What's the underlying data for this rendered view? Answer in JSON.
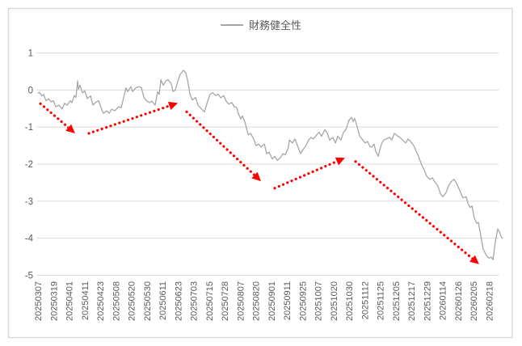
{
  "chart_data": {
    "type": "line",
    "title": "",
    "legend_position": "top",
    "grid": true,
    "frame": true,
    "x_axis": {
      "tick_labels": [
        "20250307",
        "20250319",
        "20250401",
        "20250411",
        "20250423",
        "20250508",
        "20250520",
        "20250530",
        "20250611",
        "20250623",
        "20250703",
        "20250715",
        "20250728",
        "20250807",
        "20250820",
        "20250901",
        "20250911",
        "20250925",
        "20251007",
        "20251020",
        "20251030",
        "20251112",
        "20251125",
        "20251205",
        "20251217",
        "20251229",
        "20260114",
        "20260126",
        "20260205",
        "20260218"
      ],
      "label_rotation_deg": 90,
      "x_scale_note": "series x values are in tick-label index units: 0 = 20250307, 29 = 20260218"
    },
    "y_axis": {
      "min": -5,
      "max": 1,
      "ticks": [
        1,
        0,
        -1,
        -2,
        -3,
        -4,
        -5
      ]
    },
    "series": [
      {
        "name": "財務健全性",
        "color": "#A6A6A6",
        "points": [
          [
            0,
            -0.08
          ],
          [
            0.1,
            -0.07
          ],
          [
            0.26,
            -0.16
          ],
          [
            0.36,
            -0.12
          ],
          [
            0.52,
            -0.29
          ],
          [
            0.68,
            -0.24
          ],
          [
            0.83,
            -0.32
          ],
          [
            0.99,
            -0.29
          ],
          [
            1.14,
            -0.45
          ],
          [
            1.35,
            -0.41
          ],
          [
            1.56,
            -0.51
          ],
          [
            1.71,
            -0.36
          ],
          [
            1.87,
            -0.41
          ],
          [
            2.08,
            -0.29
          ],
          [
            2.18,
            -0.34
          ],
          [
            2.34,
            -0.15
          ],
          [
            2.44,
            -0.2
          ],
          [
            2.55,
            0.25
          ],
          [
            2.6,
            0.02
          ],
          [
            2.7,
            0.13
          ],
          [
            2.86,
            -0.08
          ],
          [
            3.01,
            -0.02
          ],
          [
            3.17,
            -0.23
          ],
          [
            3.38,
            -0.16
          ],
          [
            3.53,
            -0.41
          ],
          [
            3.69,
            -0.34
          ],
          [
            3.9,
            -0.29
          ],
          [
            4.05,
            -0.48
          ],
          [
            4.21,
            -0.63
          ],
          [
            4.42,
            -0.56
          ],
          [
            4.57,
            -0.63
          ],
          [
            4.73,
            -0.52
          ],
          [
            4.94,
            -0.56
          ],
          [
            5.19,
            -0.45
          ],
          [
            5.35,
            -0.48
          ],
          [
            5.51,
            -0.2
          ],
          [
            5.66,
            0.06
          ],
          [
            5.77,
            -0.04
          ],
          [
            5.97,
            0.09
          ],
          [
            6.08,
            -0.04
          ],
          [
            6.29,
            0.06
          ],
          [
            6.49,
            0.09
          ],
          [
            6.65,
            0.06
          ],
          [
            6.81,
            -0.2
          ],
          [
            7.01,
            -0.3
          ],
          [
            7.17,
            -0.34
          ],
          [
            7.32,
            -0.3
          ],
          [
            7.53,
            -0.41
          ],
          [
            7.69,
            -0.05
          ],
          [
            7.79,
            -0.12
          ],
          [
            7.9,
            0.28
          ],
          [
            8.05,
            0.13
          ],
          [
            8.21,
            0.24
          ],
          [
            8.36,
            0.28
          ],
          [
            8.57,
            0.17
          ],
          [
            8.68,
            -0.04
          ],
          [
            8.83,
            0
          ],
          [
            8.99,
            0.24
          ],
          [
            9.14,
            0.42
          ],
          [
            9.35,
            0.53
          ],
          [
            9.51,
            0.46
          ],
          [
            9.61,
            0.28
          ],
          [
            9.77,
            -0.12
          ],
          [
            9.92,
            -0.27
          ],
          [
            10.13,
            -0.2
          ],
          [
            10.29,
            -0.41
          ],
          [
            10.44,
            -0.48
          ],
          [
            10.7,
            -0.59
          ],
          [
            10.91,
            -0.3
          ],
          [
            11.06,
            -0.12
          ],
          [
            11.22,
            -0.07
          ],
          [
            11.43,
            -0.15
          ],
          [
            11.58,
            -0.11
          ],
          [
            11.74,
            -0.21
          ],
          [
            11.95,
            -0.15
          ],
          [
            12.1,
            -0.3
          ],
          [
            12.26,
            -0.38
          ],
          [
            12.47,
            -0.34
          ],
          [
            12.62,
            -0.45
          ],
          [
            12.78,
            -0.48
          ],
          [
            12.88,
            -0.63
          ],
          [
            13.04,
            -0.78
          ],
          [
            13.14,
            -0.7
          ],
          [
            13.3,
            -0.85
          ],
          [
            13.51,
            -1.21
          ],
          [
            13.66,
            -1.17
          ],
          [
            13.82,
            -1.28
          ],
          [
            14.03,
            -1.5
          ],
          [
            14.18,
            -1.46
          ],
          [
            14.34,
            -1.54
          ],
          [
            14.55,
            -1.46
          ],
          [
            14.7,
            -1.72
          ],
          [
            14.86,
            -1.68
          ],
          [
            15.06,
            -1.86
          ],
          [
            15.22,
            -1.79
          ],
          [
            15.38,
            -1.9
          ],
          [
            15.58,
            -1.83
          ],
          [
            15.74,
            -1.72
          ],
          [
            15.9,
            -1.75
          ],
          [
            16.1,
            -1.55
          ],
          [
            16.16,
            -1.35
          ],
          [
            16.36,
            -1.43
          ],
          [
            16.52,
            -1.32
          ],
          [
            16.68,
            -1.5
          ],
          [
            16.88,
            -1.72
          ],
          [
            17.04,
            -1.61
          ],
          [
            17.19,
            -1.53
          ],
          [
            17.4,
            -1.35
          ],
          [
            17.56,
            -1.28
          ],
          [
            17.71,
            -1.32
          ],
          [
            17.92,
            -1.21
          ],
          [
            18.08,
            -1.14
          ],
          [
            18.23,
            -1.25
          ],
          [
            18.44,
            -1.07
          ],
          [
            18.6,
            -1.17
          ],
          [
            18.75,
            -1.35
          ],
          [
            18.96,
            -1.28
          ],
          [
            19.12,
            -1.43
          ],
          [
            19.27,
            -1.25
          ],
          [
            19.48,
            -1.35
          ],
          [
            19.64,
            -1.14
          ],
          [
            19.79,
            -1.07
          ],
          [
            20,
            -0.81
          ],
          [
            20.16,
            -0.74
          ],
          [
            20.26,
            -0.85
          ],
          [
            20.36,
            -0.77
          ],
          [
            20.52,
            -0.99
          ],
          [
            20.68,
            -1.25
          ],
          [
            20.83,
            -1.32
          ],
          [
            21.04,
            -1.43
          ],
          [
            21.19,
            -1.39
          ],
          [
            21.35,
            -1.53
          ],
          [
            21.45,
            -1.54
          ],
          [
            21.61,
            -1.46
          ],
          [
            21.71,
            -1.65
          ],
          [
            21.87,
            -1.79
          ],
          [
            22.08,
            -1.46
          ],
          [
            22.23,
            -1.35
          ],
          [
            22.39,
            -1.32
          ],
          [
            22.6,
            -1.28
          ],
          [
            22.75,
            -1.35
          ],
          [
            22.91,
            -1.17
          ],
          [
            23.12,
            -1.24
          ],
          [
            23.27,
            -1.28
          ],
          [
            23.43,
            -1.35
          ],
          [
            23.64,
            -1.43
          ],
          [
            23.79,
            -1.32
          ],
          [
            23.95,
            -1.39
          ],
          [
            24.16,
            -1.5
          ],
          [
            24.31,
            -1.65
          ],
          [
            24.47,
            -1.79
          ],
          [
            24.68,
            -2.04
          ],
          [
            24.83,
            -2.15
          ],
          [
            24.99,
            -2.33
          ],
          [
            25.19,
            -2.41
          ],
          [
            25.35,
            -2.37
          ],
          [
            25.51,
            -2.48
          ],
          [
            25.71,
            -2.59
          ],
          [
            25.87,
            -2.8
          ],
          [
            26.03,
            -2.88
          ],
          [
            26.23,
            -2.77
          ],
          [
            26.39,
            -2.59
          ],
          [
            26.55,
            -2.48
          ],
          [
            26.75,
            -2.41
          ],
          [
            26.91,
            -2.52
          ],
          [
            27.06,
            -2.66
          ],
          [
            27.17,
            -2.77
          ],
          [
            27.32,
            -2.91
          ],
          [
            27.53,
            -2.88
          ],
          [
            27.64,
            -3.06
          ],
          [
            27.79,
            -3.17
          ],
          [
            27.9,
            -3.13
          ],
          [
            28.05,
            -3.46
          ],
          [
            28.21,
            -3.6
          ],
          [
            28.31,
            -3.57
          ],
          [
            28.47,
            -3.93
          ],
          [
            28.62,
            -4.29
          ],
          [
            28.83,
            -4.47
          ],
          [
            28.99,
            -4.54
          ],
          [
            29.14,
            -4.51
          ],
          [
            29.25,
            -4.58
          ],
          [
            29.4,
            -4.11
          ],
          [
            29.56,
            -3.75
          ],
          [
            29.66,
            -3.82
          ],
          [
            29.77,
            -3.96
          ],
          [
            29.87,
            -4
          ]
        ]
      }
    ],
    "annotations": {
      "style": "dotted trend arrows with solid triangular heads",
      "color": "#FF0000",
      "trend_arrows": [
        {
          "from": [
            0.16,
            -0.37
          ],
          "to": [
            2.39,
            -1.17
          ],
          "direction": "down"
        },
        {
          "from": [
            3.27,
            -1.17
          ],
          "to": [
            8.99,
            -0.35
          ],
          "direction": "up"
        },
        {
          "from": [
            9.56,
            -0.59
          ],
          "to": [
            14.34,
            -2.46
          ],
          "direction": "down"
        },
        {
          "from": [
            15.22,
            -2.65
          ],
          "to": [
            19.74,
            -1.83
          ],
          "direction": "up"
        },
        {
          "from": [
            20.42,
            -1.93
          ],
          "to": [
            28.36,
            -4.7
          ],
          "direction": "down"
        }
      ]
    }
  },
  "colors": {
    "background": "#FFFFFF",
    "frame_border": "#D9D9D9",
    "gridline": "#D9D9D9",
    "axis_label": "#595959",
    "legend_text": "#595959",
    "series_line": "#A6A6A6",
    "arrow": "#FF0000"
  }
}
